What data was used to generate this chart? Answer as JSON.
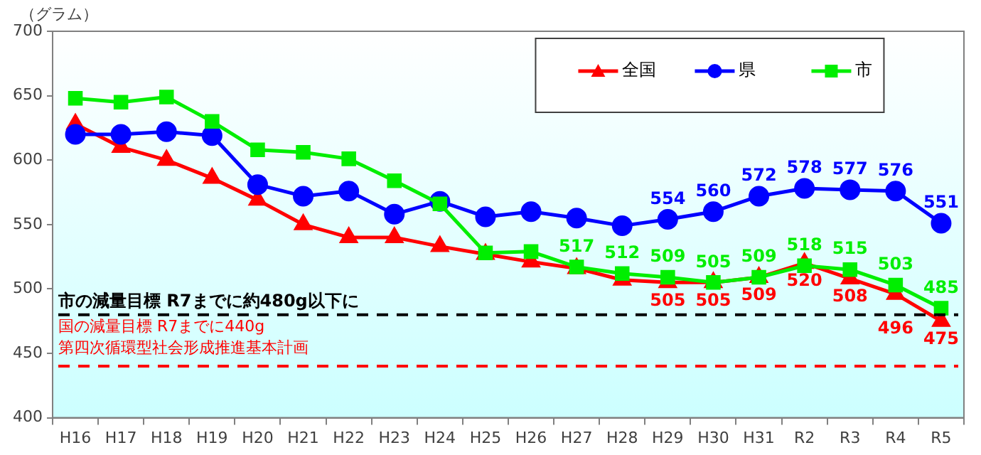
{
  "chart_data": {
    "type": "line",
    "ylabel": "（グラム）",
    "categories": [
      "H16",
      "H17",
      "H18",
      "H19",
      "H20",
      "H21",
      "H22",
      "H23",
      "H24",
      "H25",
      "H26",
      "H27",
      "H28",
      "H29",
      "H30",
      "H31",
      "R2",
      "R3",
      "R4",
      "R5"
    ],
    "series": [
      {
        "name": "全国",
        "color": "#ff0000",
        "marker": "triangle",
        "values": [
          628,
          610,
          600,
          586,
          569,
          550,
          540,
          540,
          533,
          527,
          521,
          516,
          507,
          505,
          505,
          509,
          520,
          508,
          496,
          475
        ],
        "value_labels": [
          null,
          null,
          null,
          null,
          null,
          null,
          null,
          null,
          null,
          null,
          null,
          null,
          null,
          "505",
          "505",
          "509",
          "520",
          "508",
          "496",
          "475"
        ]
      },
      {
        "name": "県",
        "color": "#0000ff",
        "marker": "circle",
        "values": [
          620,
          620,
          622,
          619,
          581,
          572,
          576,
          558,
          568,
          556,
          560,
          555,
          549,
          554,
          560,
          572,
          578,
          577,
          576,
          551
        ],
        "value_labels": [
          null,
          null,
          null,
          null,
          null,
          null,
          null,
          null,
          null,
          null,
          null,
          null,
          null,
          "554",
          "560",
          "572",
          "578",
          "577",
          "576",
          "551"
        ]
      },
      {
        "name": "市",
        "color": "#00ee00",
        "marker": "square",
        "values": [
          648,
          645,
          649,
          630,
          608,
          606,
          601,
          584,
          566,
          528,
          529,
          517,
          512,
          509,
          505,
          509,
          518,
          515,
          503,
          485
        ],
        "value_labels": [
          null,
          null,
          null,
          null,
          null,
          null,
          null,
          null,
          null,
          null,
          null,
          "517",
          "512",
          "509",
          "505",
          "509",
          "518",
          "515",
          "503",
          "485"
        ]
      }
    ],
    "ylim": [
      400,
      700
    ],
    "yticks": [
      400,
      450,
      500,
      550,
      600,
      650,
      700
    ],
    "grid": false,
    "legend": "top",
    "ref_lines": [
      {
        "axis": "y",
        "value": 480,
        "label": "市の減量目標 R7までに約480g以下に",
        "color": "#000000",
        "line_style": "dashed"
      },
      {
        "axis": "y",
        "value": 440,
        "label": "国の減量目標 R7までに440g\n第四次循環型社会形成推進基本計画",
        "color": "#ff0000",
        "line_style": "dashed"
      }
    ]
  }
}
